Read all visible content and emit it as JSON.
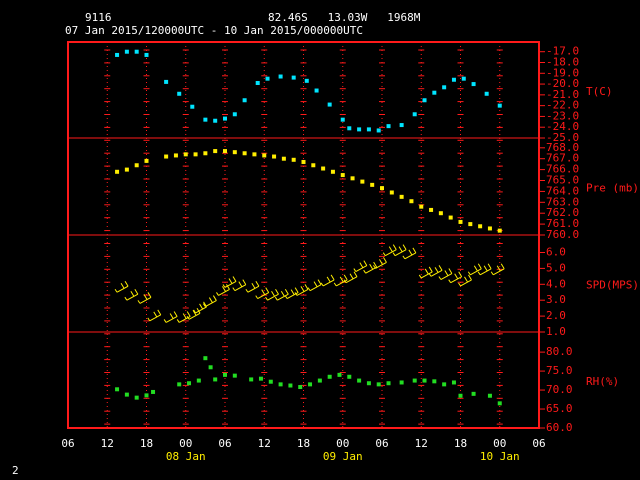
{
  "header": {
    "station": "9116",
    "location": "82.46S   13.03W   1968M",
    "period": "07 Jan 2015/120000UTC - 10 Jan 2015/000000UTC",
    "page": "2"
  },
  "xaxis": {
    "xlim": [
      6,
      78
    ],
    "xticks": [
      {
        "value": 6,
        "label": "06"
      },
      12,
      18,
      {
        "value": 24,
        "label": "00"
      },
      {
        "value": 30,
        "label": "06"
      },
      {
        "value": 36,
        "label": "12"
      },
      {
        "value": 42,
        "label": "18"
      },
      {
        "value": 48,
        "label": "00"
      },
      {
        "value": 54,
        "label": "06"
      },
      {
        "value": 60,
        "label": "12"
      },
      {
        "value": 66,
        "label": "18"
      },
      {
        "value": 72,
        "label": "00"
      },
      {
        "value": 78,
        "label": "06"
      }
    ],
    "date_labels": [
      {
        "value": 24,
        "label": "08 Jan"
      },
      {
        "value": 48,
        "label": "09 Jan"
      },
      {
        "value": 72,
        "label": "10 Jan"
      }
    ]
  },
  "chart_data": [
    {
      "type": "scatter",
      "ylabel": "T(C)",
      "color": "#00e5ff",
      "ylim": [
        -25,
        -16.1
      ],
      "yticks": [
        {
          "value": -17,
          "label": "-17.0"
        },
        {
          "value": -18,
          "label": "-18.0"
        },
        {
          "value": -19,
          "label": "-19.0"
        },
        {
          "value": -20,
          "label": "-20.0"
        },
        {
          "value": -21,
          "label": "-21.0"
        },
        {
          "value": -22,
          "label": "-22.0"
        },
        {
          "value": -23,
          "label": "-23.0"
        },
        {
          "value": -24,
          "label": "-24.0"
        },
        {
          "value": -25,
          "label": "-25.0"
        }
      ],
      "x": [
        13.5,
        15,
        16.5,
        18,
        21,
        23,
        25,
        27,
        28.5,
        30,
        31.5,
        33,
        35,
        36.5,
        38.5,
        40.5,
        42.5,
        44,
        46,
        48,
        49,
        50.5,
        52,
        53.5,
        55,
        57,
        59,
        60.5,
        62,
        63.5,
        65,
        66.5,
        68,
        70,
        72
      ],
      "values": [
        -17.3,
        -17.0,
        -17.0,
        -17.3,
        -19.8,
        -20.9,
        -22.1,
        -23.3,
        -23.4,
        -23.2,
        -22.8,
        -21.5,
        -19.9,
        -19.5,
        -19.3,
        -19.4,
        -19.7,
        -20.6,
        -21.9,
        -23.3,
        -24.1,
        -24.2,
        -24.2,
        -24.3,
        -23.9,
        -23.8,
        -22.8,
        -21.5,
        -20.8,
        -20.3,
        -19.6,
        -19.5,
        -20.0,
        -20.9,
        -22.0
      ]
    },
    {
      "type": "scatter",
      "ylabel": "Pre (mb)",
      "color": "#ffee00",
      "ylim": [
        760,
        768.9
      ],
      "yticks": [
        {
          "value": 768,
          "label": "768.0"
        },
        {
          "value": 767,
          "label": "767.0"
        },
        {
          "value": 766,
          "label": "766.0"
        },
        {
          "value": 765,
          "label": "765.0"
        },
        {
          "value": 764,
          "label": "764.0"
        },
        {
          "value": 763,
          "label": "763.0"
        },
        {
          "value": 762,
          "label": "762.0"
        },
        {
          "value": 761,
          "label": "761.0"
        },
        {
          "value": 760,
          "label": "760.0"
        }
      ],
      "x": [
        13.5,
        15,
        16.5,
        18,
        21,
        22.5,
        24,
        25.5,
        27,
        28.5,
        30,
        31.5,
        33,
        34.5,
        36,
        37.5,
        39,
        40.5,
        42,
        43.5,
        45,
        46.5,
        48,
        49.5,
        51,
        52.5,
        54,
        55.5,
        57,
        58.5,
        60,
        61.5,
        63,
        64.5,
        66,
        67.5,
        69,
        70.5,
        72
      ],
      "values": [
        765.8,
        766.0,
        766.4,
        766.8,
        767.2,
        767.3,
        767.4,
        767.4,
        767.5,
        767.7,
        767.7,
        767.6,
        767.5,
        767.4,
        767.3,
        767.2,
        767.0,
        766.9,
        766.7,
        766.4,
        766.1,
        765.8,
        765.5,
        765.2,
        764.9,
        764.6,
        764.3,
        763.9,
        763.5,
        763.1,
        762.6,
        762.3,
        762.0,
        761.6,
        761.2,
        761.0,
        760.8,
        760.6,
        760.4
      ]
    },
    {
      "type": "barb",
      "ylabel": "SPD(MPS)",
      "color": "#ffee00",
      "ylim": [
        1,
        7.1
      ],
      "yticks": [
        {
          "value": 6,
          "label": "6.0"
        },
        {
          "value": 5,
          "label": "5.0"
        },
        {
          "value": 4,
          "label": "4.0"
        },
        {
          "value": 3,
          "label": "3.0"
        },
        {
          "value": 2,
          "label": "2.0"
        },
        {
          "value": 1,
          "label": "1.0"
        }
      ],
      "x": [
        13.5,
        15,
        17,
        18.5,
        21,
        23,
        24.5,
        25.5,
        27,
        29,
        30,
        31.5,
        33.5,
        35,
        36.5,
        38,
        39.5,
        41,
        43,
        45,
        47,
        48.5,
        50,
        51.5,
        53,
        54.5,
        56,
        57.5,
        60,
        61.5,
        63,
        64.5,
        66,
        67.5,
        69,
        71
      ],
      "values": [
        3.5,
        3.0,
        2.8,
        1.7,
        1.6,
        1.6,
        1.8,
        2.2,
        2.6,
        3.3,
        3.8,
        3.6,
        3.5,
        3.1,
        3.0,
        3.0,
        3.1,
        3.3,
        3.6,
        3.9,
        3.9,
        4.1,
        4.8,
        4.7,
        5.0,
        5.8,
        5.8,
        5.6,
        4.4,
        4.5,
        4.3,
        4.1,
        3.9,
        4.6,
        4.6,
        4.6
      ]
    },
    {
      "type": "scatter",
      "ylabel": "RH(%)",
      "color": "#22dd22",
      "ylim": [
        60,
        85.3
      ],
      "yticks": [
        {
          "value": 80,
          "label": "80.0"
        },
        {
          "value": 75,
          "label": "75.0"
        },
        {
          "value": 70,
          "label": "70.0"
        },
        {
          "value": 65,
          "label": "65.0"
        },
        {
          "value": 60,
          "label": "60.0"
        }
      ],
      "x": [
        13.5,
        15,
        16.5,
        18,
        19,
        23,
        24.5,
        26,
        27,
        27.8,
        28.5,
        30,
        31.5,
        34,
        35.5,
        37,
        38.5,
        40,
        41.5,
        43,
        44.5,
        46,
        47.5,
        49,
        50.5,
        52,
        53.5,
        55,
        57,
        59,
        60.5,
        62,
        63.5,
        65,
        66,
        68,
        70.5,
        72
      ],
      "values": [
        70.2,
        68.8,
        68.0,
        68.6,
        69.5,
        71.5,
        71.8,
        72.5,
        78.4,
        76.0,
        72.8,
        74.0,
        73.8,
        72.8,
        73.0,
        72.2,
        71.5,
        71.2,
        70.8,
        71.5,
        72.5,
        73.5,
        74.0,
        73.5,
        72.5,
        71.8,
        71.5,
        71.8,
        72.0,
        72.5,
        72.5,
        72.3,
        71.5,
        72.0,
        68.5,
        69.0,
        68.5,
        66.5
      ]
    }
  ]
}
